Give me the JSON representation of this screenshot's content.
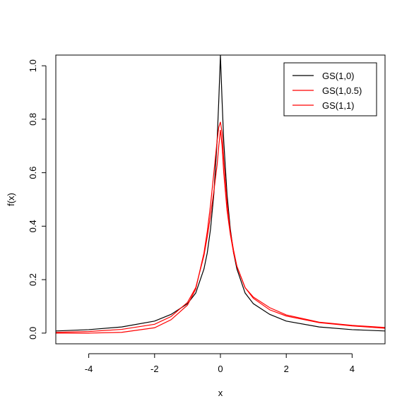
{
  "chart_data": {
    "type": "line",
    "title": "",
    "xlabel": "x",
    "ylabel": "f(x)",
    "xlim": [
      -5,
      5
    ],
    "ylim": [
      -0.04,
      1.04
    ],
    "x_ticks": [
      -4,
      -2,
      0,
      2,
      4
    ],
    "x_tick_labels": [
      "-4",
      "-2",
      "0",
      "2",
      "4"
    ],
    "y_ticks": [
      0.0,
      0.2,
      0.4,
      0.6,
      0.8,
      1.0
    ],
    "y_tick_labels": [
      "0.0",
      "0.2",
      "0.4",
      "0.6",
      "0.8",
      "1.0"
    ],
    "grid": false,
    "legend_position": "top-right",
    "series": [
      {
        "name": "GS(1,0)",
        "color": "#000000",
        "x": [
          -5,
          -4,
          -3,
          -2,
          -1.5,
          -1,
          -0.75,
          -0.5,
          -0.4,
          -0.3,
          -0.2,
          -0.1,
          -0.05,
          0,
          0.05,
          0.1,
          0.2,
          0.3,
          0.4,
          0.5,
          0.75,
          1,
          1.5,
          2,
          3,
          4,
          5
        ],
        "y": [
          0.008,
          0.013,
          0.023,
          0.045,
          0.07,
          0.11,
          0.15,
          0.24,
          0.3,
          0.39,
          0.52,
          0.72,
          0.87,
          1.04,
          0.87,
          0.72,
          0.52,
          0.39,
          0.3,
          0.24,
          0.15,
          0.11,
          0.07,
          0.045,
          0.023,
          0.013,
          0.008
        ]
      },
      {
        "name": "GS(1,0.5)",
        "color": "#ff0000",
        "x": [
          -5,
          -4,
          -3,
          -2,
          -1.5,
          -1,
          -0.75,
          -0.5,
          -0.4,
          -0.3,
          -0.2,
          -0.1,
          -0.05,
          0,
          0.05,
          0.1,
          0.2,
          0.3,
          0.4,
          0.5,
          0.75,
          1,
          1.5,
          2,
          3,
          4,
          5
        ],
        "y": [
          0.003,
          0.006,
          0.014,
          0.033,
          0.062,
          0.115,
          0.17,
          0.29,
          0.36,
          0.44,
          0.53,
          0.63,
          0.7,
          0.76,
          0.7,
          0.6,
          0.46,
          0.37,
          0.3,
          0.25,
          0.17,
          0.13,
          0.087,
          0.064,
          0.039,
          0.027,
          0.018
        ]
      },
      {
        "name": "GS(1,1)",
        "color": "#ff0000",
        "x": [
          -5,
          -4,
          -3,
          -2,
          -1.5,
          -1,
          -0.75,
          -0.5,
          -0.4,
          -0.3,
          -0.2,
          -0.1,
          -0.05,
          0,
          0.05,
          0.1,
          0.2,
          0.3,
          0.4,
          0.5,
          0.75,
          1,
          1.5,
          2,
          3,
          4,
          5
        ],
        "y": [
          0.0,
          0.0,
          0.003,
          0.02,
          0.05,
          0.105,
          0.165,
          0.3,
          0.38,
          0.48,
          0.6,
          0.72,
          0.77,
          0.79,
          0.75,
          0.65,
          0.49,
          0.38,
          0.31,
          0.25,
          0.17,
          0.135,
          0.095,
          0.068,
          0.041,
          0.029,
          0.021
        ]
      }
    ]
  }
}
